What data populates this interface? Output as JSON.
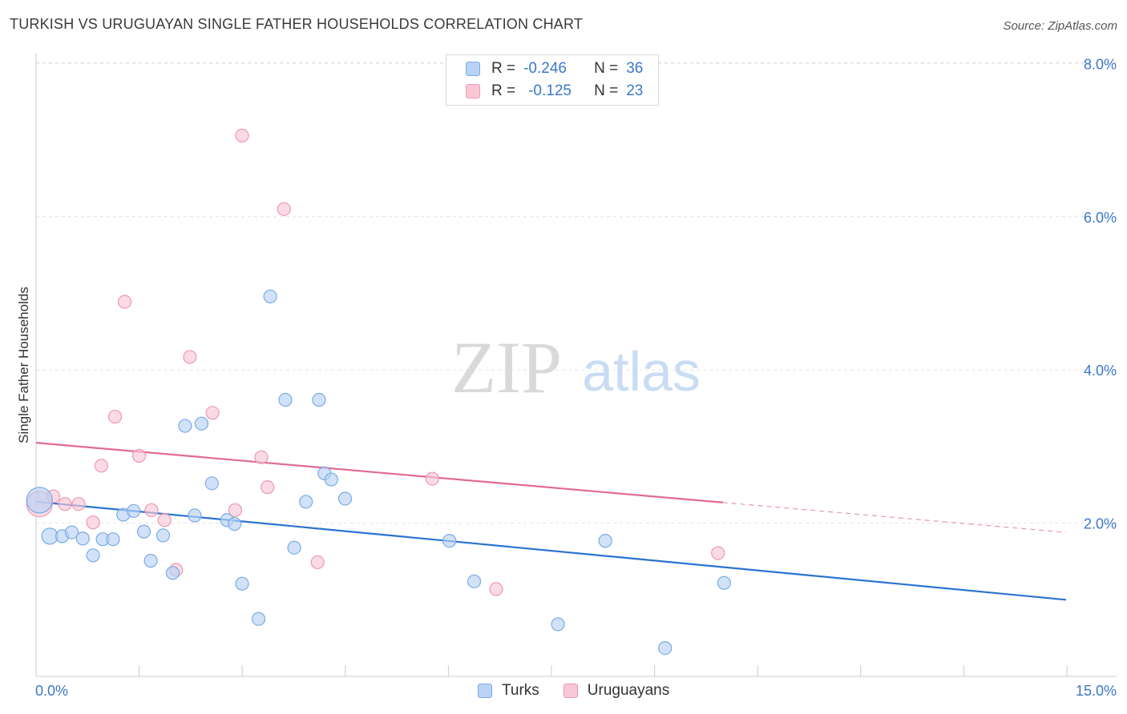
{
  "title": "TURKISH VS URUGUAYAN SINGLE FATHER HOUSEHOLDS CORRELATION CHART",
  "source": "Source: ZipAtlas.com",
  "watermark": {
    "zip": "ZIP",
    "atlas": "atlas"
  },
  "legend": {
    "r_label": "R =",
    "n_label": "N =",
    "turks": {
      "r": "-0.246",
      "n": "36"
    },
    "uruguayans": {
      "r": "-0.125",
      "n": "23"
    }
  },
  "colors": {
    "turks_fill": "#b9d3f4",
    "turks_stroke": "#7aaae6",
    "turks_line": "#2a72d0",
    "uru_fill": "#f8c7d6",
    "uru_stroke": "#ee97b1",
    "uru_line": "#e26a93",
    "axis_text": "#3a78c9"
  },
  "chart_data": {
    "type": "scatter",
    "title": "TURKISH VS URUGUAYAN SINGLE FATHER HOUSEHOLDS CORRELATION CHART",
    "xlabel": "",
    "ylabel": "Single Father Households",
    "xlim": [
      0,
      15
    ],
    "ylim": [
      0,
      8.2
    ],
    "x_tick_labels": [
      "0.0%",
      "15.0%"
    ],
    "y_ticks": [
      2,
      4,
      6,
      8
    ],
    "y_tick_labels": [
      "2.0%",
      "4.0%",
      "6.0%",
      "8.0%"
    ],
    "grid": "horizontal dashed",
    "legend_position": "top-center",
    "series": [
      {
        "name": "Turks",
        "trend": {
          "x": [
            0,
            15
          ],
          "y": [
            2.28,
            1.0
          ]
        },
        "points": [
          {
            "x": 0.05,
            "y": 2.3,
            "s": 3
          },
          {
            "x": 0.2,
            "y": 1.83,
            "s": 2
          },
          {
            "x": 0.38,
            "y": 1.83,
            "s": 1
          },
          {
            "x": 0.52,
            "y": 1.88,
            "s": 1
          },
          {
            "x": 0.68,
            "y": 1.8,
            "s": 1
          },
          {
            "x": 0.83,
            "y": 1.58,
            "s": 1
          },
          {
            "x": 0.97,
            "y": 1.79,
            "s": 1
          },
          {
            "x": 1.12,
            "y": 1.79,
            "s": 1
          },
          {
            "x": 1.27,
            "y": 2.11,
            "s": 1
          },
          {
            "x": 1.42,
            "y": 2.16,
            "s": 1
          },
          {
            "x": 1.57,
            "y": 1.89,
            "s": 1
          },
          {
            "x": 1.67,
            "y": 1.51,
            "s": 1
          },
          {
            "x": 1.85,
            "y": 1.84,
            "s": 1
          },
          {
            "x": 1.99,
            "y": 1.35,
            "s": 1
          },
          {
            "x": 2.17,
            "y": 3.27,
            "s": 1
          },
          {
            "x": 2.31,
            "y": 2.1,
            "s": 1
          },
          {
            "x": 2.41,
            "y": 3.3,
            "s": 1
          },
          {
            "x": 2.56,
            "y": 2.52,
            "s": 1
          },
          {
            "x": 2.78,
            "y": 2.04,
            "s": 1
          },
          {
            "x": 2.89,
            "y": 1.99,
            "s": 1
          },
          {
            "x": 3.0,
            "y": 1.21,
            "s": 1
          },
          {
            "x": 3.24,
            "y": 0.75,
            "s": 1
          },
          {
            "x": 3.41,
            "y": 4.96,
            "s": 1
          },
          {
            "x": 3.63,
            "y": 3.61,
            "s": 1
          },
          {
            "x": 3.76,
            "y": 1.68,
            "s": 1
          },
          {
            "x": 3.93,
            "y": 2.28,
            "s": 1
          },
          {
            "x": 4.12,
            "y": 3.61,
            "s": 1
          },
          {
            "x": 4.2,
            "y": 2.65,
            "s": 1
          },
          {
            "x": 4.3,
            "y": 2.57,
            "s": 1
          },
          {
            "x": 4.5,
            "y": 2.32,
            "s": 1
          },
          {
            "x": 6.02,
            "y": 1.77,
            "s": 1
          },
          {
            "x": 6.38,
            "y": 1.24,
            "s": 1
          },
          {
            "x": 7.6,
            "y": 0.68,
            "s": 1
          },
          {
            "x": 8.29,
            "y": 1.77,
            "s": 1
          },
          {
            "x": 9.16,
            "y": 0.37,
            "s": 1
          },
          {
            "x": 10.02,
            "y": 1.22,
            "s": 1
          }
        ]
      },
      {
        "name": "Uruguayans",
        "trend": {
          "x": [
            0,
            10.0
          ],
          "y": [
            3.05,
            2.27
          ]
        },
        "trend_dashed": {
          "x": [
            10.0,
            15
          ],
          "y": [
            2.27,
            1.88
          ]
        },
        "points": [
          {
            "x": 0.05,
            "y": 2.25,
            "s": 3
          },
          {
            "x": 0.25,
            "y": 2.35,
            "s": 1
          },
          {
            "x": 0.42,
            "y": 2.25,
            "s": 1
          },
          {
            "x": 0.62,
            "y": 2.25,
            "s": 1
          },
          {
            "x": 0.83,
            "y": 2.01,
            "s": 1
          },
          {
            "x": 0.95,
            "y": 2.75,
            "s": 1
          },
          {
            "x": 1.15,
            "y": 3.39,
            "s": 1
          },
          {
            "x": 1.29,
            "y": 4.89,
            "s": 1
          },
          {
            "x": 1.5,
            "y": 2.88,
            "s": 1
          },
          {
            "x": 1.68,
            "y": 2.17,
            "s": 1
          },
          {
            "x": 1.87,
            "y": 2.04,
            "s": 1
          },
          {
            "x": 2.04,
            "y": 1.39,
            "s": 1
          },
          {
            "x": 2.24,
            "y": 4.17,
            "s": 1
          },
          {
            "x": 2.57,
            "y": 3.44,
            "s": 1
          },
          {
            "x": 2.9,
            "y": 2.17,
            "s": 1
          },
          {
            "x": 3.0,
            "y": 7.06,
            "s": 1
          },
          {
            "x": 3.28,
            "y": 2.86,
            "s": 1
          },
          {
            "x": 3.37,
            "y": 2.47,
            "s": 1
          },
          {
            "x": 3.61,
            "y": 6.1,
            "s": 1
          },
          {
            "x": 4.1,
            "y": 1.49,
            "s": 1
          },
          {
            "x": 5.77,
            "y": 2.58,
            "s": 1
          },
          {
            "x": 6.7,
            "y": 1.14,
            "s": 1
          },
          {
            "x": 9.93,
            "y": 1.61,
            "s": 1
          }
        ]
      }
    ]
  }
}
